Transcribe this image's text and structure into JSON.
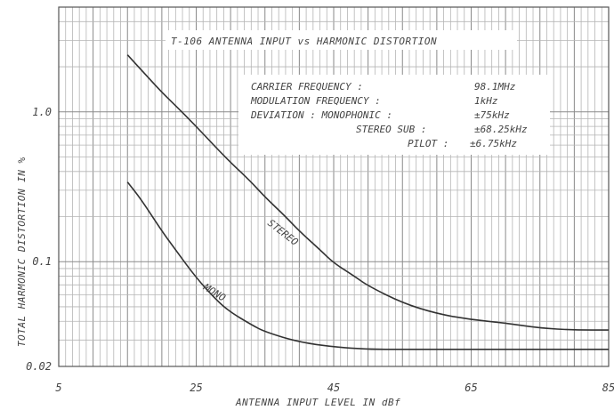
{
  "chart_data": {
    "type": "line",
    "title": "T-106 ANTENNA INPUT vs HARMONIC DISTORTION",
    "xlabel": "ANTENNA INPUT LEVEL IN dBf",
    "ylabel": "TOTAL HARMONIC DISTORTION IN %",
    "xlim": [
      5,
      85
    ],
    "ylim": [
      0.02,
      5
    ],
    "y_scale": "log",
    "x_ticks": [
      "5",
      "25",
      "45",
      "65",
      "85"
    ],
    "y_ticks": [
      "0.02",
      "0.1",
      "1.0"
    ],
    "y_tick_values": [
      0.02,
      0.1,
      1.0
    ],
    "grid": true,
    "series": [
      {
        "name": "STEREO",
        "x": [
          15,
          18,
          20,
          22,
          25,
          28,
          30,
          33,
          35,
          38,
          40,
          43,
          45,
          48,
          50,
          55,
          60,
          65,
          70,
          75,
          80,
          85
        ],
        "y": [
          2.4,
          1.7,
          1.35,
          1.1,
          0.8,
          0.57,
          0.46,
          0.34,
          0.27,
          0.2,
          0.16,
          0.12,
          0.098,
          0.08,
          0.069,
          0.053,
          0.045,
          0.041,
          0.039,
          0.036,
          0.035,
          0.035
        ]
      },
      {
        "name": "MONO",
        "x": [
          15,
          17,
          20,
          22,
          25,
          28,
          30,
          33,
          35,
          40,
          45,
          50,
          55,
          60,
          65,
          70,
          75,
          80,
          85
        ],
        "y": [
          0.34,
          0.26,
          0.16,
          0.12,
          0.078,
          0.055,
          0.046,
          0.038,
          0.034,
          0.029,
          0.027,
          0.026,
          0.026,
          0.026,
          0.026,
          0.026,
          0.026,
          0.026,
          0.026
        ]
      }
    ],
    "annotations": {
      "carrier_label": "CARRIER FREQUENCY :",
      "carrier_value": "98.1MHz",
      "modulation_label": "MODULATION FREQUENCY :",
      "modulation_value": "1kHz",
      "deviation_label": "DEVIATION : MONOPHONIC :",
      "deviation_value": "±75kHz",
      "stereo_sub_label": "STEREO SUB :",
      "stereo_sub_value": "±68.25kHz",
      "pilot_label": "PILOT :",
      "pilot_value": "±6.75kHz",
      "stereo_curve_label": "STEREO",
      "mono_curve_label": "MONO"
    }
  }
}
